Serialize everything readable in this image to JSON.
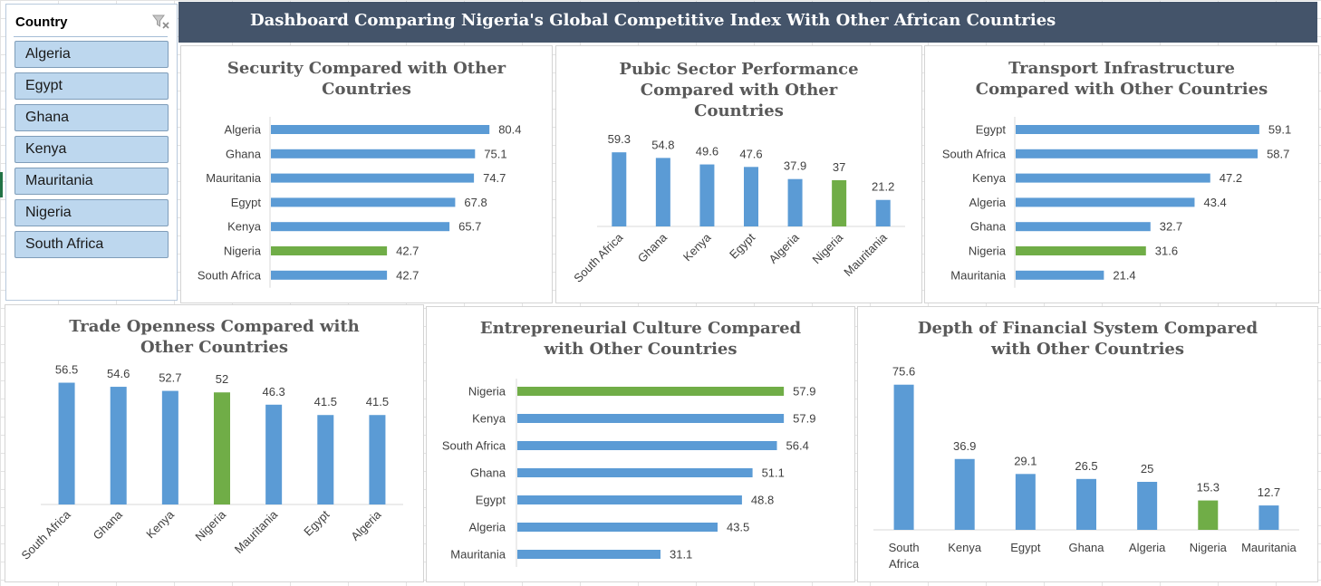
{
  "slicer": {
    "title": "Country",
    "clear_filter_icon": "clear-filter-icon",
    "items": [
      "Algeria",
      "Egypt",
      "Ghana",
      "Kenya",
      "Mauritania",
      "Nigeria",
      "South Africa"
    ]
  },
  "dashboard": {
    "title": "Dashboard Comparing Nigeria's Global Competitive Index With Other African Countries"
  },
  "colors": {
    "banner": "#44546a",
    "bar": "#5b9bd5",
    "highlight": "#70ad47",
    "slicer_item": "#bdd7ee",
    "title_text": "#595959"
  },
  "chart_data": [
    {
      "id": "security",
      "type": "bar",
      "orientation": "horizontal",
      "title": "Security Compared with Other Countries",
      "categories": [
        "Algeria",
        "Ghana",
        "Mauritania",
        "Egypt",
        "Kenya",
        "Nigeria",
        "South Africa"
      ],
      "values": [
        80.4,
        75.1,
        74.7,
        67.8,
        65.7,
        42.7,
        42.7
      ],
      "value_labels": [
        "80.4",
        "75.1",
        "74.7",
        "67.8",
        "65.7",
        "42.7",
        "42.7"
      ],
      "highlight": "Nigeria"
    },
    {
      "id": "public-sector",
      "type": "bar",
      "orientation": "vertical",
      "title": "Pubic Sector Performance Compared with Other Countries",
      "categories": [
        "South Africa",
        "Ghana",
        "Kenya",
        "Egypt",
        "Algeria",
        "Nigeria",
        "Mauritania"
      ],
      "values": [
        59.3,
        54.8,
        49.6,
        47.6,
        37.9,
        37,
        21.2
      ],
      "value_labels": [
        "59.3",
        "54.8",
        "49.6",
        "47.6",
        "37.9",
        "37",
        "21.2"
      ],
      "highlight": "Nigeria"
    },
    {
      "id": "transport",
      "type": "bar",
      "orientation": "horizontal",
      "title": "Transport Infrastructure Compared with Other Countries",
      "categories": [
        "Egypt",
        "South Africa",
        "Kenya",
        "Algeria",
        "Ghana",
        "Nigeria",
        "Mauritania"
      ],
      "values": [
        59.1,
        58.7,
        47.2,
        43.4,
        32.7,
        31.6,
        21.4
      ],
      "value_labels": [
        "59.1",
        "58.7",
        "47.2",
        "43.4",
        "32.7",
        "31.6",
        "21.4"
      ],
      "highlight": "Nigeria"
    },
    {
      "id": "trade",
      "type": "bar",
      "orientation": "vertical",
      "title": "Trade Openness Compared with Other Countries",
      "categories": [
        "South Africa",
        "Ghana",
        "Kenya",
        "Nigeria",
        "Mauritania",
        "Egypt",
        "Algeria"
      ],
      "values": [
        56.5,
        54.6,
        52.7,
        52,
        46.3,
        41.5,
        41.5
      ],
      "value_labels": [
        "56.5",
        "54.6",
        "52.7",
        "52",
        "46.3",
        "41.5",
        "41.5"
      ],
      "highlight": "Nigeria"
    },
    {
      "id": "entrepreneurial",
      "type": "bar",
      "orientation": "horizontal",
      "title": "Entrepreneurial Culture Compared with Other Countries",
      "categories": [
        "Nigeria",
        "Kenya",
        "South Africa",
        "Ghana",
        "Egypt",
        "Algeria",
        "Mauritania"
      ],
      "values": [
        57.9,
        57.9,
        56.4,
        51.1,
        48.8,
        43.5,
        31.1
      ],
      "value_labels": [
        "57.9",
        "57.9",
        "56.4",
        "51.1",
        "48.8",
        "43.5",
        "31.1"
      ],
      "highlight": "Nigeria"
    },
    {
      "id": "financial",
      "type": "bar",
      "orientation": "vertical",
      "title": "Depth of Financial System Compared with Other Countries",
      "categories": [
        "South Africa",
        "Kenya",
        "Egypt",
        "Ghana",
        "Algeria",
        "Nigeria",
        "Mauritania"
      ],
      "values": [
        75.6,
        36.9,
        29.1,
        26.5,
        25,
        15.3,
        12.7
      ],
      "value_labels": [
        "75.6",
        "36.9",
        "29.1",
        "26.5",
        "25",
        "15.3",
        "12.7"
      ],
      "highlight": "Nigeria"
    }
  ]
}
